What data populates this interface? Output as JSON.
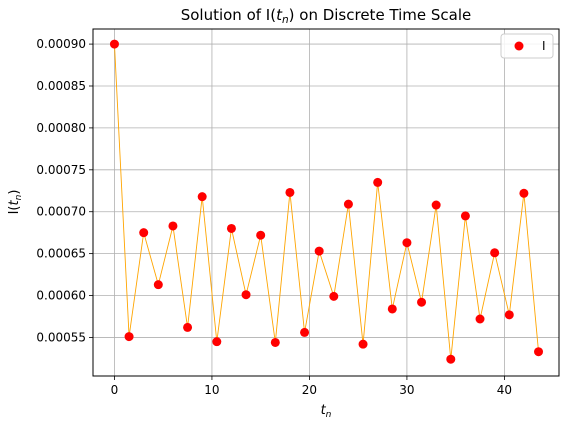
{
  "chart_data": {
    "type": "scatter",
    "title": "Solution of I(t_n) on Discrete Time Scale",
    "xlabel": "t_n",
    "ylabel": "I(t_n)",
    "xlim": [
      -2.2,
      45.6
    ],
    "ylim": [
      0.000504,
      0.000918
    ],
    "xticks": [
      0,
      10,
      20,
      30,
      40
    ],
    "yticks": [
      0.00055,
      0.0006,
      0.00065,
      0.0007,
      0.00075,
      0.0008,
      0.00085,
      0.0009
    ],
    "ytick_labels": [
      "0.00055",
      "0.00060",
      "0.00065",
      "0.00070",
      "0.00075",
      "0.00080",
      "0.00085",
      "0.00090"
    ],
    "grid": true,
    "legend_position": "top-right",
    "series": [
      {
        "name": "I",
        "marker_color": "#ff0000",
        "line_color": "#ffa500",
        "x": [
          0,
          1.5,
          3,
          4.5,
          6,
          7.5,
          9,
          10.5,
          12,
          13.5,
          15,
          16.5,
          18,
          19.5,
          21,
          22.5,
          24,
          25.5,
          27,
          28.5,
          30,
          31.5,
          33,
          34.5,
          36,
          37.5,
          39,
          40.5,
          42,
          43.5
        ],
        "y": [
          0.0009,
          0.000551,
          0.000675,
          0.000613,
          0.000683,
          0.000562,
          0.000718,
          0.000545,
          0.00068,
          0.000601,
          0.000672,
          0.000544,
          0.000723,
          0.000556,
          0.000653,
          0.000599,
          0.000709,
          0.000542,
          0.000735,
          0.000584,
          0.000663,
          0.000592,
          0.000708,
          0.000524,
          0.000695,
          0.000572,
          0.000651,
          0.000577,
          0.000722,
          0.000533
        ]
      }
    ]
  }
}
